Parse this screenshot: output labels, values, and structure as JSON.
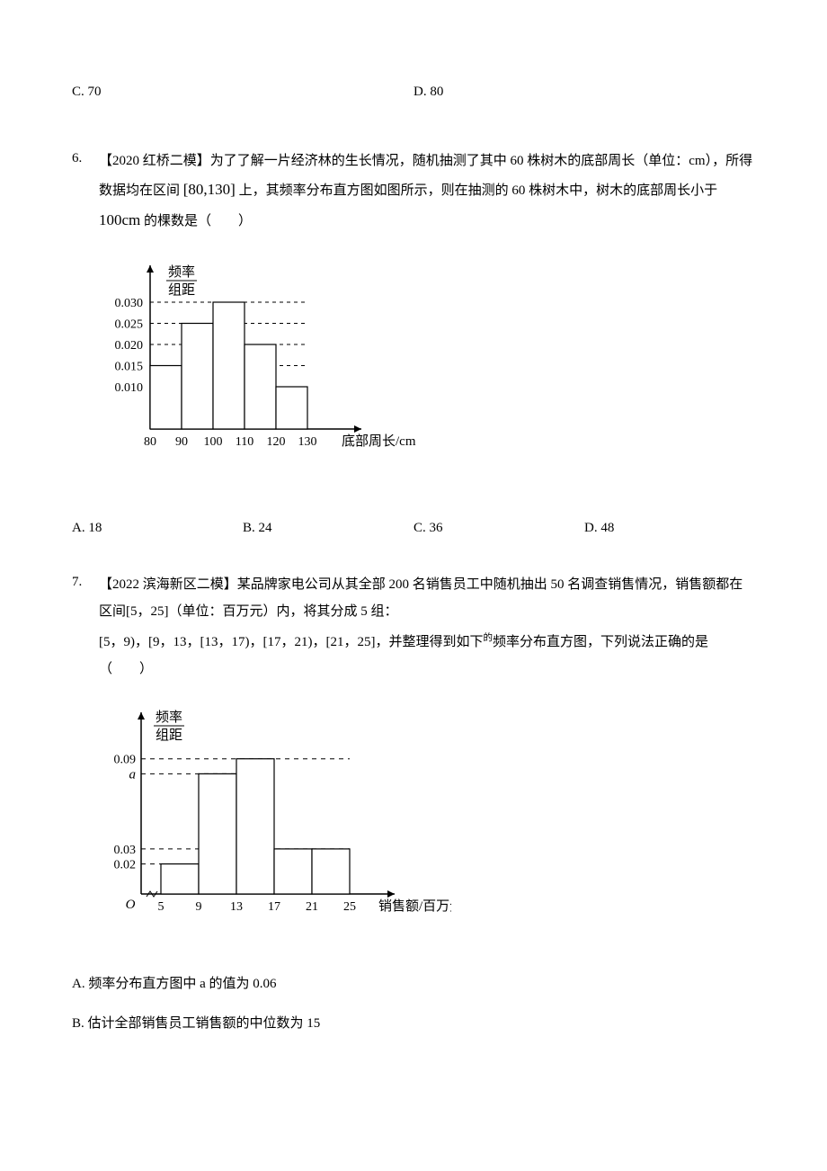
{
  "prev_options": {
    "c": "C. 70",
    "d": "D. 80"
  },
  "q6": {
    "num": "6.",
    "text_before_interval": "【2020 红桥二模】为了了解一片经济林的生长情况，随机抽测了其中 60 株树木的底部周长（单位：cm），所得数据均在区间",
    "interval": "[80,130]",
    "text_after_interval": "上，其频率分布直方图如图所示，则在抽测的 60 株树木中，树木的底部周长小于",
    "threshold": "100cm",
    "text_tail": "的棵数是（　　）",
    "chart": {
      "y_label_top": "频率",
      "y_label_bottom": "组距",
      "x_label": "底部周长/cm",
      "y_ticks": [
        "0.010",
        "0.015",
        "0.020",
        "0.025",
        "0.030"
      ],
      "y_vals": [
        0.01,
        0.015,
        0.02,
        0.025,
        0.03
      ],
      "x_ticks": [
        "80",
        "90",
        "100",
        "110",
        "120",
        "130"
      ],
      "bars": [
        0.015,
        0.025,
        0.03,
        0.02,
        0.01
      ],
      "axis_color": "#000000",
      "dash_color": "#000000"
    },
    "opts": {
      "a": "A. 18",
      "b": "B. 24",
      "c": "C. 36",
      "d": "D. 48"
    }
  },
  "q7": {
    "num": "7.",
    "text1": "【2022 滨海新区二模】某品牌家电公司从其全部 200 名销售员工中随机抽出 50 名调查销售情况，销售额都在区间[5，25]（单位：百万元）内，将其分成 5 组：",
    "text2_before": "[5，9)，[9，13，[13，17)，[17，21)，[21，25]，并整理得到如下",
    "text2_sup": "的",
    "text2_after": "频率分布直方图，下列说法正确的是（　　）",
    "chart": {
      "y_label_top": "频率",
      "y_label_bottom": "组距",
      "x_label": "销售额/百万元",
      "y_ticks": [
        "0.02",
        "0.03",
        "0.09"
      ],
      "y_label_a": "a",
      "origin": "O",
      "x_ticks": [
        "5",
        "9",
        "13",
        "17",
        "21",
        "25"
      ],
      "bars_labeled": [
        0.02,
        null,
        0.09,
        0.03,
        0.03
      ],
      "a_bar_index": 1,
      "axis_color": "#000000",
      "dash_color": "#000000"
    },
    "opt_a": "A.  频率分布直方图中 a 的值为 0.06",
    "opt_b": "B.  估计全部销售员工销售额的中位数为 15"
  }
}
